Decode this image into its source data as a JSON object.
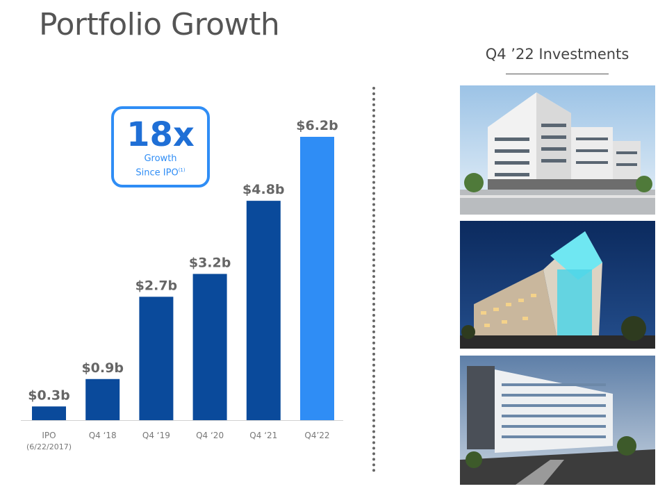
{
  "page": {
    "title": "Portfolio Growth"
  },
  "callout": {
    "multiple": "18x",
    "line1": "Growth",
    "line2": "Since IPO",
    "footnote": "(1)"
  },
  "investments": {
    "title": "Q4 ’22 Investments",
    "photos": [
      "building-photo-1",
      "building-photo-2",
      "building-photo-3"
    ]
  },
  "colors": {
    "bar_dark": "#0a4a9b",
    "bar_highlight": "#2f8df5",
    "value_label": "#666666",
    "axis_label": "#777777"
  },
  "chart_data": {
    "type": "bar",
    "categories": [
      [
        "IPO",
        "(6/22/2017)"
      ],
      [
        "Q4 ‘18"
      ],
      [
        "Q4 ‘19"
      ],
      [
        "Q4 ‘20"
      ],
      [
        "Q4 ‘21"
      ],
      [
        "Q4’22"
      ]
    ],
    "values": [
      0.3,
      0.9,
      2.7,
      3.2,
      4.8,
      6.2
    ],
    "value_labels": [
      "$0.3b",
      "$0.9b",
      "$2.7b",
      "$3.2b",
      "$4.8b",
      "$6.2b"
    ],
    "highlight_index": 5,
    "ylim": [
      0,
      6.2
    ],
    "grid": false,
    "xlabel": "",
    "ylabel": ""
  }
}
